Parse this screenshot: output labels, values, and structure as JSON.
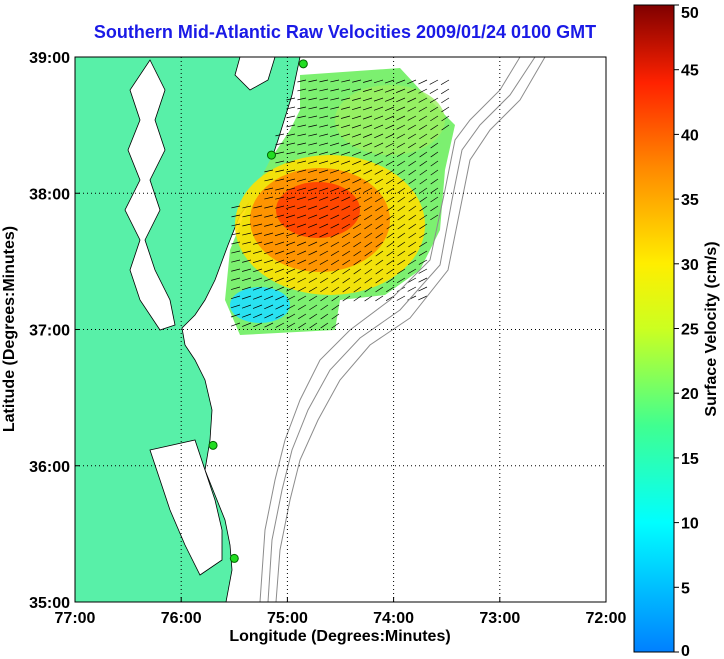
{
  "title": "Southern Mid-Atlantic Raw Velocities 2009/01/24 0100 GMT",
  "map": {
    "xlabel": "Longitude (Degrees:Minutes)",
    "ylabel": "Latitude (Degrees:Minutes)",
    "lon_range": [
      -77,
      -72
    ],
    "lat_range": [
      35,
      39
    ],
    "x_ticks": [
      {
        "value": -77,
        "label": "77:00"
      },
      {
        "value": -76,
        "label": "76:00"
      },
      {
        "value": -75,
        "label": "75:00"
      },
      {
        "value": -74,
        "label": "74:00"
      },
      {
        "value": -73,
        "label": "73:00"
      },
      {
        "value": -72,
        "label": "72:00"
      }
    ],
    "y_ticks": [
      {
        "value": 35,
        "label": "35:00"
      },
      {
        "value": 36,
        "label": "36:00"
      },
      {
        "value": 37,
        "label": "37:00"
      },
      {
        "value": 38,
        "label": "38:00"
      },
      {
        "value": 39,
        "label": "39:00"
      }
    ],
    "grid": "dotted",
    "land_color": "#58f0a8",
    "ocean_color": "#ffffff",
    "bathymetry_color": "#8c8c8c",
    "arrow_color": "#000000",
    "station_color": "#22dd22"
  },
  "colorbar": {
    "label": "Surface Velocity (cm/s)",
    "range": [
      0,
      50
    ],
    "colormap": "jet",
    "tick_labels": [
      "0",
      "5",
      "10",
      "15",
      "20",
      "25",
      "30",
      "35",
      "40",
      "45",
      "50"
    ]
  },
  "chart_data": {
    "type": "heatmap",
    "quantity": "surface current speed (cm/s)",
    "coverage": "lon -75.5 to -73.4, lat 36.9 to 38.9",
    "max_speed_region": {
      "lon": -74.8,
      "lat": 37.9,
      "speed_cm_s": 45
    },
    "low_speed_region": {
      "lon": -75.2,
      "lat": 37.15,
      "speed_cm_s": 8
    },
    "northern_band_speed_cm_s": 22,
    "prevailing_flow_direction": "southwest",
    "stations": [
      {
        "lon": -74.85,
        "lat": 38.95
      },
      {
        "lon": -75.15,
        "lat": 38.28
      },
      {
        "lon": -75.7,
        "lat": 36.15
      },
      {
        "lon": -75.5,
        "lat": 35.32
      }
    ]
  }
}
